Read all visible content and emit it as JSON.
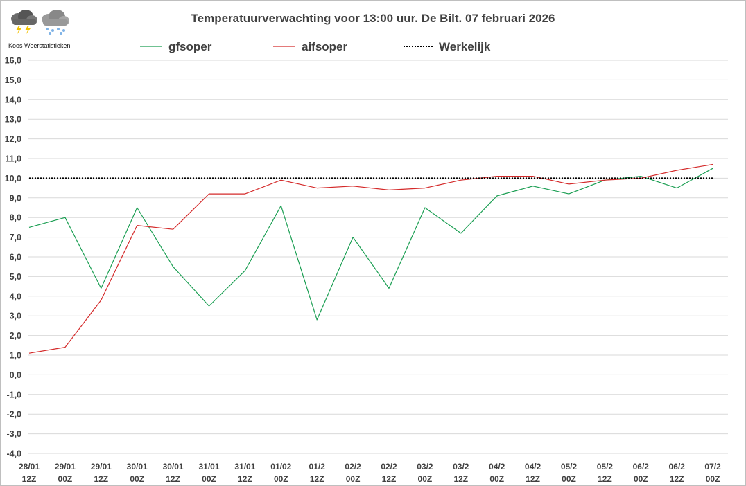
{
  "logo": {
    "caption": "Koos Weerstatistieken",
    "icons": [
      "thunderstorm-cloud-icon",
      "snow-cloud-icon"
    ]
  },
  "chart_data": {
    "type": "line",
    "title": "Temperatuurverwachting voor 13:00 uur. De Bilt. 07 februari 2026",
    "xlabel": "",
    "ylabel": "",
    "ylim": [
      -4,
      16
    ],
    "ytick_step": 1,
    "yticks": [
      "16,0",
      "15,0",
      "14,0",
      "13,0",
      "12,0",
      "11,0",
      "10,0",
      "9,0",
      "8,0",
      "7,0",
      "6,0",
      "5,0",
      "4,0",
      "3,0",
      "2,0",
      "1,0",
      "0,0",
      "-1,0",
      "-2,0",
      "-3,0",
      "-4,0"
    ],
    "grid": true,
    "legend_position": "top",
    "categories": [
      [
        "28/01",
        "12Z"
      ],
      [
        "29/01",
        "00Z"
      ],
      [
        "29/01",
        "12Z"
      ],
      [
        "30/01",
        "00Z"
      ],
      [
        "30/01",
        "12Z"
      ],
      [
        "31/01",
        "00Z"
      ],
      [
        "31/01",
        "12Z"
      ],
      [
        "01/02",
        "00Z"
      ],
      [
        "01/2",
        "12Z"
      ],
      [
        "02/2",
        "00Z"
      ],
      [
        "02/2",
        "12Z"
      ],
      [
        "03/2",
        "00Z"
      ],
      [
        "03/2",
        "12Z"
      ],
      [
        "04/2",
        "00Z"
      ],
      [
        "04/2",
        "12Z"
      ],
      [
        "05/2",
        "00Z"
      ],
      [
        "05/2",
        "12Z"
      ],
      [
        "06/2",
        "00Z"
      ],
      [
        "06/2",
        "12Z"
      ],
      [
        "07/2",
        "00Z"
      ]
    ],
    "series": [
      {
        "name": "gfsoper",
        "color": "#1a9e52",
        "style": "solid",
        "values": [
          7.5,
          8.0,
          4.4,
          8.5,
          5.5,
          3.5,
          5.3,
          8.6,
          2.8,
          7.0,
          4.4,
          8.5,
          7.2,
          9.1,
          9.6,
          9.2,
          9.9,
          10.1,
          9.5,
          10.5
        ]
      },
      {
        "name": "aifsoper",
        "color": "#d42a2a",
        "style": "solid",
        "values": [
          1.1,
          1.4,
          3.8,
          7.6,
          7.4,
          9.2,
          9.2,
          9.9,
          9.5,
          9.6,
          9.4,
          9.5,
          9.9,
          10.1,
          10.1,
          9.7,
          9.9,
          10.0,
          10.4,
          10.7
        ]
      },
      {
        "name": "Werkelijk",
        "color": "#000000",
        "style": "dotted",
        "values": [
          10.0,
          10.0,
          10.0,
          10.0,
          10.0,
          10.0,
          10.0,
          10.0,
          10.0,
          10.0,
          10.0,
          10.0,
          10.0,
          10.0,
          10.0,
          10.0,
          10.0,
          10.0,
          10.0,
          10.0
        ]
      }
    ]
  }
}
